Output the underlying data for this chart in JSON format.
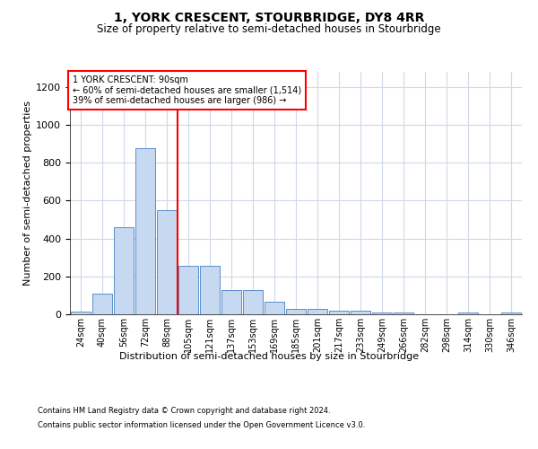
{
  "title": "1, YORK CRESCENT, STOURBRIDGE, DY8 4RR",
  "subtitle": "Size of property relative to semi-detached houses in Stourbridge",
  "xlabel": "Distribution of semi-detached houses by size in Stourbridge",
  "ylabel": "Number of semi-detached properties",
  "footnote1": "Contains HM Land Registry data © Crown copyright and database right 2024.",
  "footnote2": "Contains public sector information licensed under the Open Government Licence v3.0.",
  "bar_labels": [
    "24sqm",
    "40sqm",
    "56sqm",
    "72sqm",
    "88sqm",
    "105sqm",
    "121sqm",
    "137sqm",
    "153sqm",
    "169sqm",
    "185sqm",
    "201sqm",
    "217sqm",
    "233sqm",
    "249sqm",
    "266sqm",
    "282sqm",
    "298sqm",
    "314sqm",
    "330sqm",
    "346sqm"
  ],
  "bar_values": [
    15,
    110,
    460,
    875,
    550,
    255,
    255,
    130,
    130,
    65,
    30,
    30,
    20,
    20,
    10,
    10,
    0,
    0,
    10,
    0,
    10
  ],
  "bar_color": "#c6d9f0",
  "bar_edge_color": "#5b8fc9",
  "grid_color": "#d0d8e8",
  "vline_color": "red",
  "annotation_text": "1 YORK CRESCENT: 90sqm\n← 60% of semi-detached houses are smaller (1,514)\n39% of semi-detached houses are larger (986) →",
  "annotation_box_color": "white",
  "annotation_box_edge": "red",
  "ylim": [
    0,
    1280
  ],
  "yticks": [
    0,
    200,
    400,
    600,
    800,
    1000,
    1200
  ],
  "background_color": "white"
}
